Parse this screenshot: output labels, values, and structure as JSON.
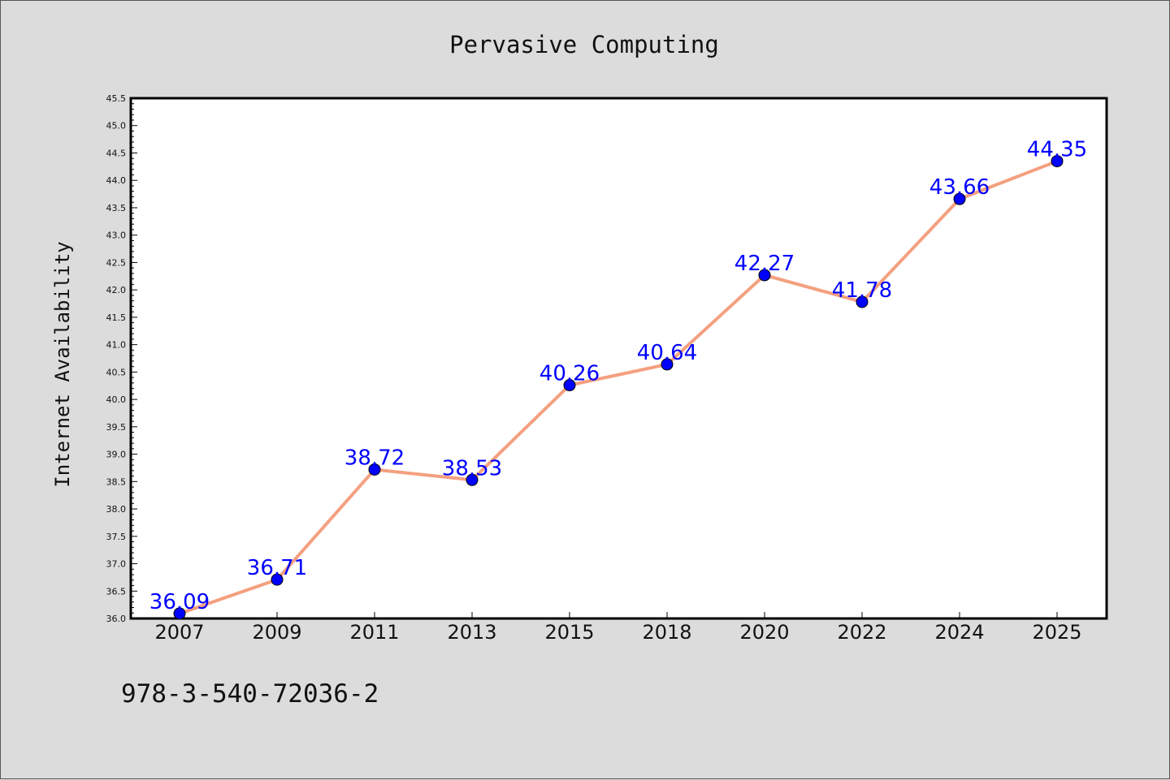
{
  "chart_data": {
    "type": "line",
    "title": "Pervasive Computing",
    "xlabel": "",
    "ylabel": "Internet Availability",
    "categories": [
      "2007",
      "2009",
      "2011",
      "2013",
      "2015",
      "2018",
      "2020",
      "2022",
      "2024",
      "2025"
    ],
    "series": [
      {
        "values": [
          36.09,
          36.71,
          38.72,
          38.53,
          40.26,
          40.64,
          42.27,
          41.78,
          43.66,
          44.35
        ],
        "data_labels": [
          "36.09",
          "36.71",
          "38.72",
          "38.53",
          "40.26",
          "40.64",
          "42.27",
          "41.78",
          "43.66",
          "44.35"
        ],
        "line_color": "#f4a07f",
        "marker_color": "#0000ff"
      }
    ],
    "ylim": [
      36.0,
      45.5
    ],
    "yticks": [
      "36.0",
      "36.5",
      "37.0",
      "37.5",
      "38.0",
      "38.5",
      "39.0",
      "39.5",
      "40.0",
      "40.5",
      "41.0",
      "41.5",
      "42.0",
      "42.5",
      "43.0",
      "43.5",
      "44.0",
      "44.5",
      "45.0",
      "45.5"
    ],
    "grid": false,
    "legend": "none"
  },
  "footer": {
    "text": "978-3-540-72036-2"
  }
}
